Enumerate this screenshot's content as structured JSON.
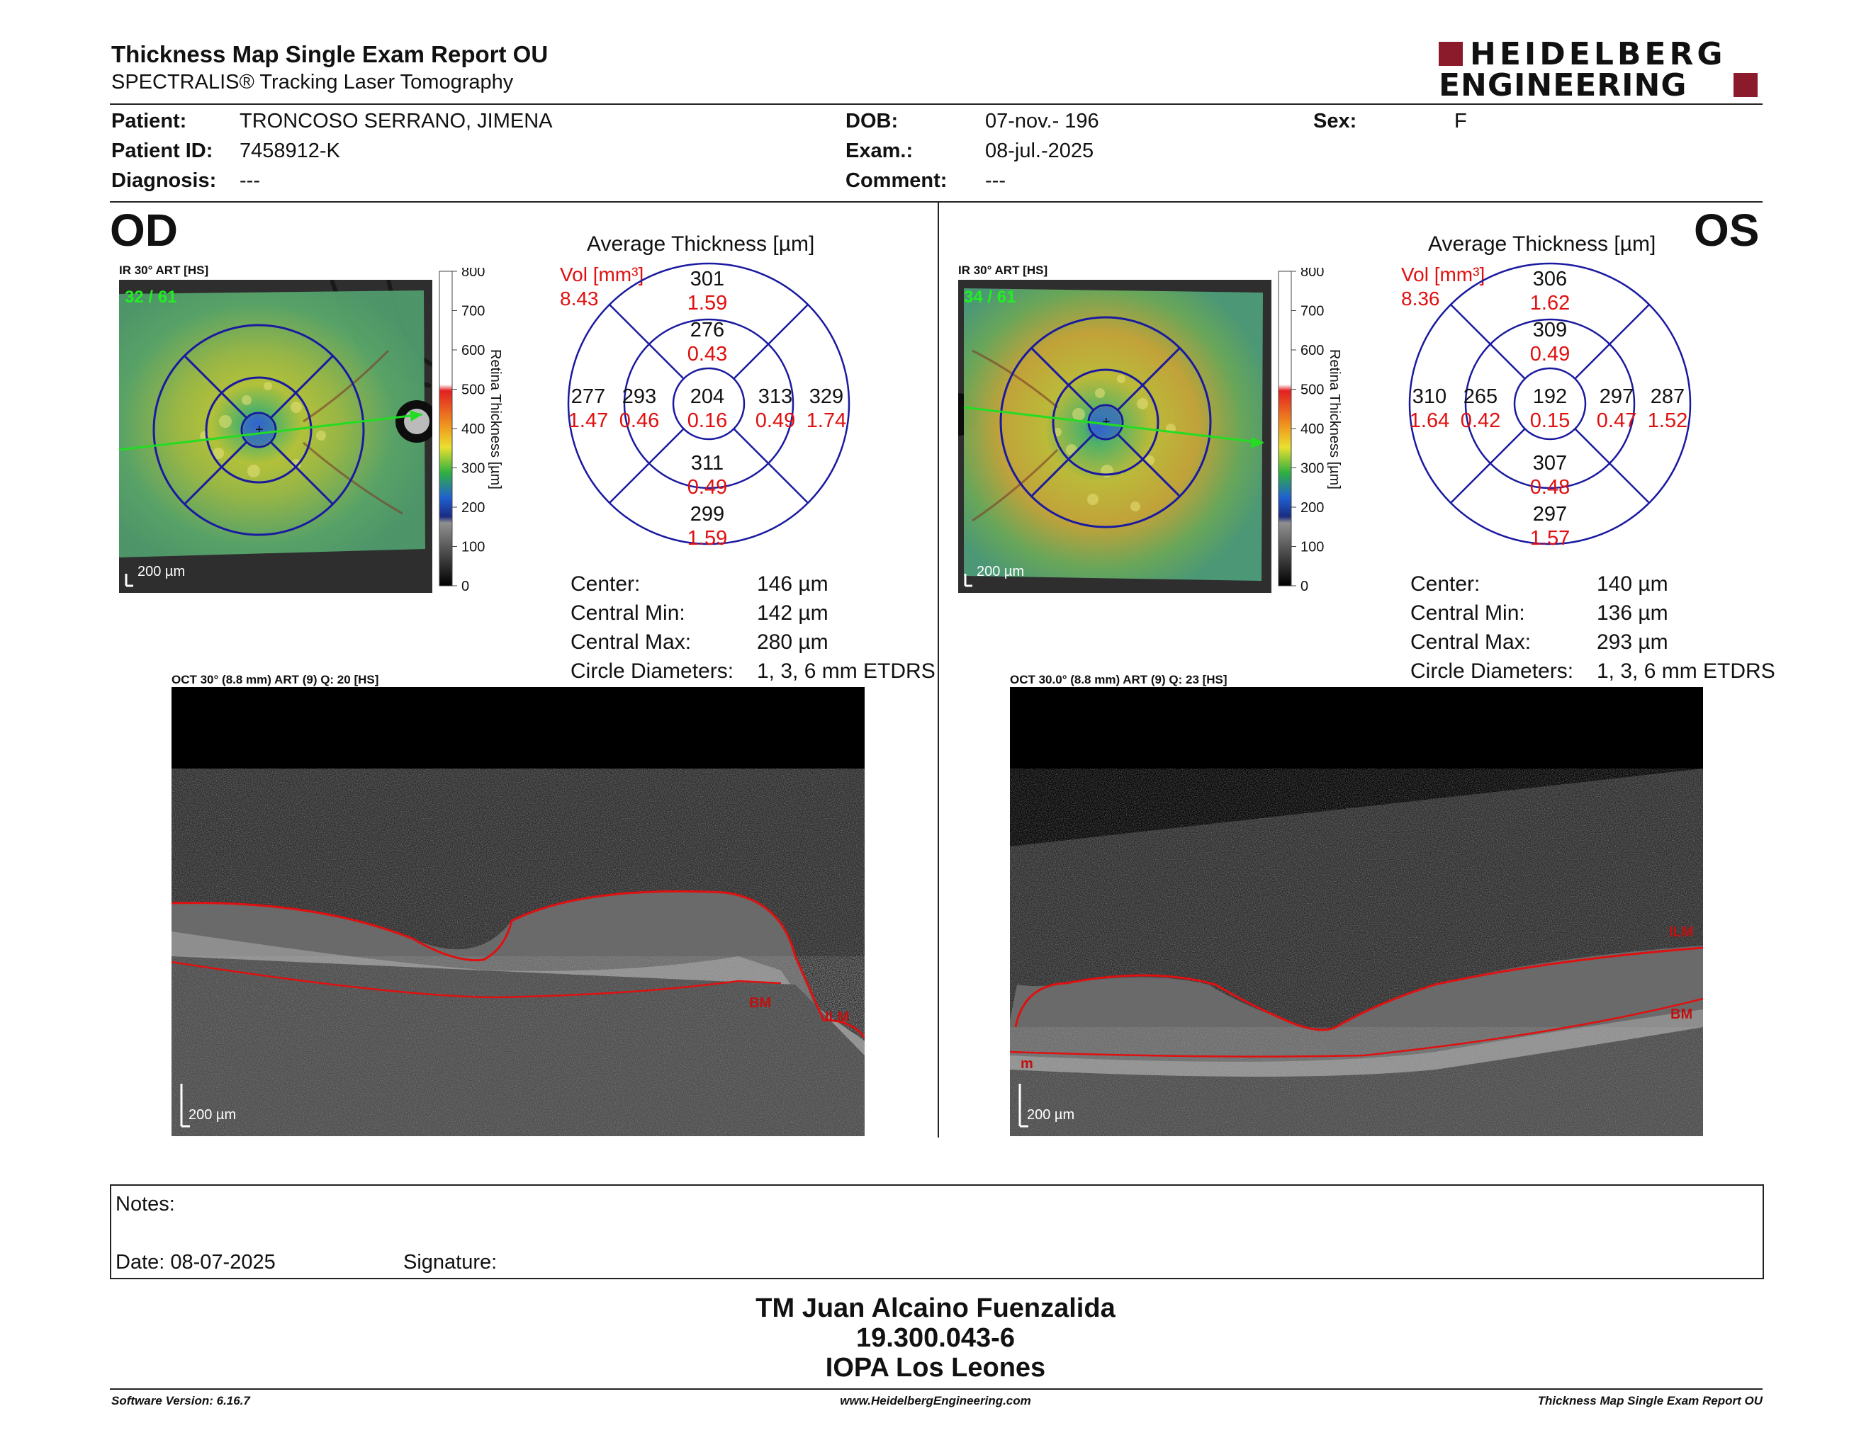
{
  "header": {
    "title": "Thickness Map Single Exam Report OU",
    "subtitle": "SPECTRALIS® Tracking Laser Tomography",
    "logo_line1": "HEIDELBERG",
    "logo_line2": "ENGINEERING",
    "brand_color": "#8b1a2b"
  },
  "patient": {
    "patient_label": "Patient:",
    "patient_value": "TRONCOSO SERRANO, JIMENA",
    "id_label": "Patient ID:",
    "id_value": "7458912-K",
    "diag_label": "Diagnosis:",
    "diag_value": "---",
    "dob_label": "DOB:",
    "dob_value": "07-nov.- 196",
    "exam_label": "Exam.:",
    "exam_value": "08-jul.-2025",
    "comment_label": "Comment:",
    "comment_value": "---",
    "sex_label": "Sex:",
    "sex_value": "F"
  },
  "od": {
    "eye_label": "OD",
    "ir_header": "IR 30° ART [HS]",
    "frames": "32 / 61",
    "scale_bar": "200 µm",
    "oct_header": "OCT 30° (8.8 mm) ART (9) Q: 20 [HS]",
    "oct_scale": "200 µm",
    "oct_labels": [
      "BM",
      "ILM"
    ],
    "avg_title": "Average Thickness [µm]",
    "vol_label": "Vol [mm³]",
    "vol_total": "8.43",
    "sectors": {
      "center": {
        "t": "204",
        "v": "0.16"
      },
      "inner_sup": {
        "t": "276",
        "v": "0.43"
      },
      "inner_inf": {
        "t": "311",
        "v": "0.49"
      },
      "inner_left": {
        "t": "293",
        "v": "0.46"
      },
      "inner_right": {
        "t": "313",
        "v": "0.49"
      },
      "outer_sup": {
        "t": "301",
        "v": "1.59"
      },
      "outer_inf": {
        "t": "299",
        "v": "1.59"
      },
      "outer_left": {
        "t": "277",
        "v": "1.47"
      },
      "outer_right": {
        "t": "329",
        "v": "1.74"
      }
    },
    "stats": [
      {
        "label": "Center:",
        "value": "146 µm"
      },
      {
        "label": "Central Min:",
        "value": "142 µm"
      },
      {
        "label": "Central Max:",
        "value": "280 µm"
      },
      {
        "label": "Circle Diameters:",
        "value": "1, 3, 6 mm ETDRS"
      }
    ]
  },
  "os": {
    "eye_label": "OS",
    "ir_header": "IR 30° ART [HS]",
    "frames": "34 / 61",
    "scale_bar": "200 µm",
    "oct_header": "OCT 30.0° (8.8 mm) ART (9) Q: 23 [HS]",
    "oct_scale": "200 µm",
    "oct_labels": [
      "ILM",
      "BM",
      "m"
    ],
    "avg_title": "Average Thickness [µm]",
    "vol_label": "Vol [mm³]",
    "vol_total": "8.36",
    "sectors": {
      "center": {
        "t": "192",
        "v": "0.15"
      },
      "inner_sup": {
        "t": "309",
        "v": "0.49"
      },
      "inner_inf": {
        "t": "307",
        "v": "0.48"
      },
      "inner_left": {
        "t": "265",
        "v": "0.42"
      },
      "inner_right": {
        "t": "297",
        "v": "0.47"
      },
      "outer_sup": {
        "t": "306",
        "v": "1.62"
      },
      "outer_inf": {
        "t": "297",
        "v": "1.57"
      },
      "outer_left": {
        "t": "310",
        "v": "1.64"
      },
      "outer_right": {
        "t": "287",
        "v": "1.52"
      }
    },
    "stats": [
      {
        "label": "Center:",
        "value": "140 µm"
      },
      {
        "label": "Central Min:",
        "value": "136 µm"
      },
      {
        "label": "Central Max:",
        "value": "293 µm"
      },
      {
        "label": "Circle Diameters:",
        "value": "1, 3, 6 mm ETDRS"
      }
    ]
  },
  "colorbar": {
    "ticks": [
      "800",
      "700",
      "600",
      "500",
      "400",
      "300",
      "200",
      "100",
      "0"
    ],
    "title": "Retina Thickness [µm]"
  },
  "notes": {
    "label": "Notes:",
    "date_label": "Date: 08-07-2025",
    "signature_label": "Signature:"
  },
  "signature": {
    "name": "TM Juan Alcaino Fuenzalida",
    "rut": "19.300.043-6",
    "institution": "IOPA Los Leones"
  },
  "footer": {
    "software": "Software Version: 6.16.7",
    "website": "www.HeidelbergEngineering.com",
    "report": "Thickness Map Single Exam Report OU"
  }
}
